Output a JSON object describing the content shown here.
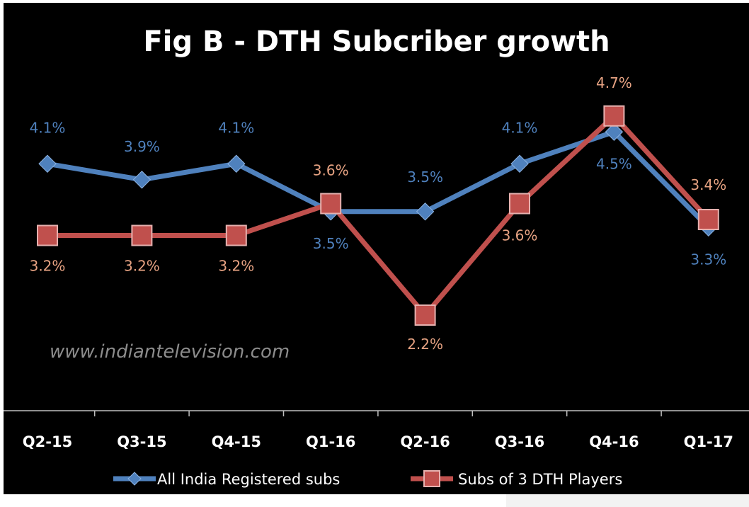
{
  "chart_data": {
    "type": "line",
    "title": "Fig B - DTH Subcriber growth",
    "watermark": "www.indiantelevision.com",
    "categories": [
      "Q2-15",
      "Q3-15",
      "Q4-15",
      "Q1-16",
      "Q2-16",
      "Q3-16",
      "Q4-16",
      "Q1-17"
    ],
    "series": [
      {
        "name": "All India Registered subs",
        "values": [
          4.1,
          3.9,
          4.1,
          3.5,
          3.5,
          4.1,
          4.5,
          3.3
        ],
        "labels": [
          "4.1%",
          "3.9%",
          "4.1%",
          "3.5%",
          "3.5%",
          "4.1%",
          "4.5%",
          "3.3%"
        ],
        "color": "#4f81bd",
        "marker": "diamond"
      },
      {
        "name": "Subs of 3 DTH Players",
        "values": [
          3.2,
          3.2,
          3.2,
          3.6,
          2.2,
          3.6,
          4.7,
          3.4
        ],
        "labels": [
          "3.2%",
          "3.2%",
          "3.2%",
          "3.6%",
          "2.2%",
          "3.6%",
          "4.7%",
          "3.4%"
        ],
        "color": "#c0504d",
        "marker": "square"
      }
    ],
    "ylim": [
      1.0,
      5.0
    ],
    "grid": false,
    "legend_position": "bottom",
    "colors": {
      "background": "#000000",
      "title": "#ffffff",
      "axis_text": "#ffffff",
      "watermark": "#8c8c8c",
      "series1_label": "#4f81bd",
      "series2_label": "#e6a282"
    }
  }
}
